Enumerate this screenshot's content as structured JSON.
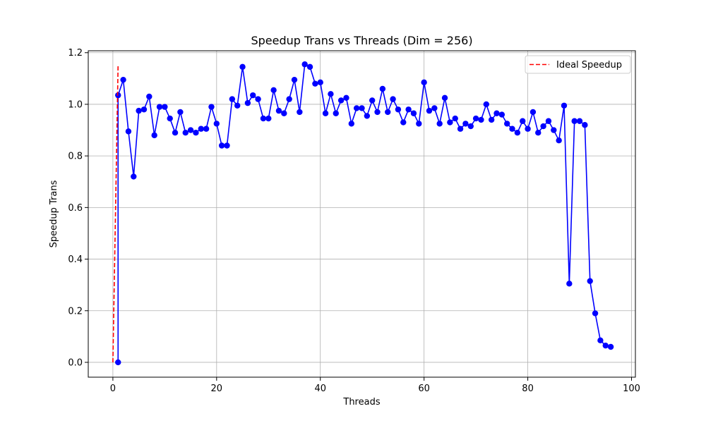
{
  "chart_data": {
    "type": "line",
    "title": "Speedup Trans vs Threads (Dim = 256)",
    "xlabel": "Threads",
    "ylabel": "Speedup Trans",
    "xlim": [
      -4.75,
      100.75
    ],
    "ylim": [
      -0.0575,
      1.2075
    ],
    "xticks": [
      0,
      20,
      40,
      60,
      80,
      100
    ],
    "yticks": [
      0.0,
      0.2,
      0.4,
      0.6,
      0.8,
      1.0,
      1.2
    ],
    "xtick_labels": [
      "0",
      "20",
      "40",
      "60",
      "80",
      "100"
    ],
    "ytick_labels": [
      "0.0",
      "0.2",
      "0.4",
      "0.6",
      "0.8",
      "1.0",
      "1.2"
    ],
    "grid": true,
    "legend": {
      "position": "upper right",
      "entries": [
        "Ideal Speedup"
      ]
    },
    "series": [
      {
        "name": "",
        "color": "#0000ff",
        "style": "solid",
        "marker": "circle",
        "x": [
          1,
          1,
          2,
          3,
          4,
          5,
          6,
          7,
          8,
          9,
          10,
          11,
          12,
          13,
          14,
          15,
          16,
          17,
          18,
          19,
          20,
          21,
          22,
          23,
          24,
          25,
          26,
          27,
          28,
          29,
          30,
          31,
          32,
          33,
          34,
          35,
          36,
          37,
          38,
          39,
          40,
          41,
          42,
          43,
          44,
          45,
          46,
          47,
          48,
          49,
          50,
          51,
          52,
          53,
          54,
          55,
          56,
          57,
          58,
          59,
          60,
          61,
          62,
          63,
          64,
          65,
          66,
          67,
          68,
          69,
          70,
          71,
          72,
          73,
          74,
          75,
          76,
          77,
          78,
          79,
          80,
          81,
          82,
          83,
          84,
          85,
          86,
          87,
          88,
          89,
          90,
          91,
          92,
          93,
          94,
          95,
          96
        ],
        "y": [
          0.0,
          1.035,
          1.095,
          0.895,
          0.72,
          0.975,
          0.98,
          1.03,
          0.88,
          0.99,
          0.99,
          0.945,
          0.89,
          0.97,
          0.89,
          0.9,
          0.89,
          0.905,
          0.905,
          0.99,
          0.925,
          0.84,
          0.84,
          1.02,
          0.995,
          1.145,
          1.005,
          1.035,
          1.02,
          0.945,
          0.945,
          1.055,
          0.975,
          0.965,
          1.02,
          1.095,
          0.97,
          1.155,
          1.145,
          1.08,
          1.085,
          0.965,
          1.04,
          0.965,
          1.015,
          1.025,
          0.925,
          0.985,
          0.985,
          0.955,
          1.015,
          0.97,
          1.06,
          0.97,
          1.02,
          0.98,
          0.93,
          0.98,
          0.965,
          0.925,
          1.085,
          0.975,
          0.985,
          0.925,
          1.025,
          0.93,
          0.945,
          0.905,
          0.925,
          0.915,
          0.945,
          0.94,
          1.0,
          0.94,
          0.965,
          0.96,
          0.925,
          0.905,
          0.89,
          0.935,
          0.905,
          0.97,
          0.89,
          0.915,
          0.935,
          0.9,
          0.86,
          0.995,
          0.305,
          0.935,
          0.935,
          0.92,
          0.315,
          0.19,
          0.085,
          0.065,
          0.06
        ]
      },
      {
        "name": "Ideal Speedup",
        "color": "#ff0000",
        "style": "dashed",
        "marker": "none",
        "x": [
          0,
          1
        ],
        "y": [
          0.0,
          1.15
        ]
      }
    ]
  }
}
